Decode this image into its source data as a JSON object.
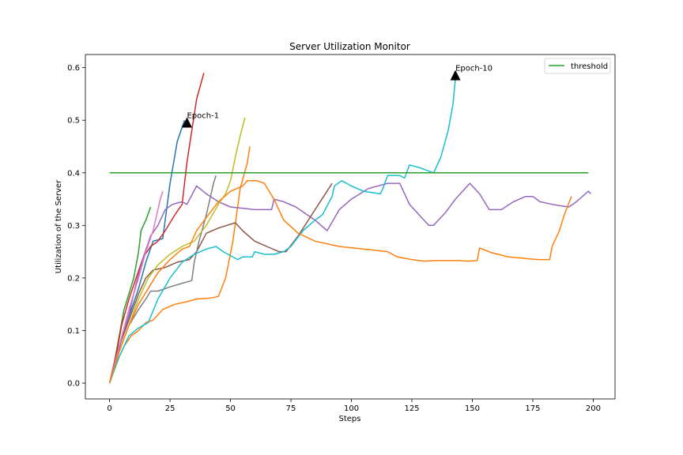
{
  "chart_data": {
    "type": "line",
    "title": "Server Utilization Monitor",
    "xlabel": "Steps",
    "ylabel": "Utilization of the Server",
    "xlim": [
      -10,
      209
    ],
    "ylim": [
      -0.03,
      0.625
    ],
    "xticks": [
      0,
      25,
      50,
      75,
      100,
      125,
      150,
      175,
      200
    ],
    "yticks": [
      0.0,
      0.1,
      0.2,
      0.3,
      0.4,
      0.5,
      0.6
    ],
    "ytick_labels": [
      "0.0",
      "0.1",
      "0.2",
      "0.3",
      "0.4",
      "0.5",
      "0.6"
    ],
    "grid": false,
    "legend_position": "upper right",
    "threshold": {
      "name": "threshold",
      "value": 0.4,
      "x_range": [
        0,
        198
      ],
      "color": "#2ca02c"
    },
    "series": [
      {
        "color": "#1f77b4",
        "points": [
          [
            0,
            0
          ],
          [
            3,
            0.05
          ],
          [
            6,
            0.1
          ],
          [
            9,
            0.14
          ],
          [
            12,
            0.18
          ],
          [
            15,
            0.23
          ],
          [
            18,
            0.27
          ],
          [
            22,
            0.275
          ],
          [
            25,
            0.38
          ],
          [
            28,
            0.46
          ],
          [
            31,
            0.5
          ]
        ]
      },
      {
        "color": "#ff7f0e",
        "points": [
          [
            0,
            0
          ],
          [
            3,
            0.04
          ],
          [
            6,
            0.07
          ],
          [
            9,
            0.09
          ],
          [
            12,
            0.1
          ],
          [
            15,
            0.115
          ],
          [
            18,
            0.12
          ],
          [
            22,
            0.14
          ],
          [
            27,
            0.15
          ],
          [
            32,
            0.155
          ],
          [
            36,
            0.16
          ],
          [
            42,
            0.162
          ],
          [
            45,
            0.165
          ],
          [
            48,
            0.2
          ],
          [
            51,
            0.27
          ],
          [
            54,
            0.37
          ],
          [
            57,
            0.42
          ],
          [
            58,
            0.45
          ]
        ]
      },
      {
        "color": "#2ca02c",
        "points": [
          [
            0,
            0
          ],
          [
            2,
            0.04
          ],
          [
            4,
            0.09
          ],
          [
            6,
            0.14
          ],
          [
            8,
            0.17
          ],
          [
            10,
            0.2
          ],
          [
            12,
            0.25
          ],
          [
            13,
            0.29
          ],
          [
            15,
            0.31
          ],
          [
            17,
            0.335
          ]
        ]
      },
      {
        "color": "#d62728",
        "points": [
          [
            0,
            0
          ],
          [
            3,
            0.06
          ],
          [
            5,
            0.11
          ],
          [
            8,
            0.16
          ],
          [
            11,
            0.2
          ],
          [
            14,
            0.24
          ],
          [
            17,
            0.26
          ],
          [
            20,
            0.27
          ],
          [
            23,
            0.29
          ],
          [
            27,
            0.32
          ],
          [
            30,
            0.34
          ],
          [
            32,
            0.42
          ],
          [
            34,
            0.48
          ],
          [
            36,
            0.54
          ],
          [
            39,
            0.59
          ]
        ]
      },
      {
        "color": "#9467bd",
        "points": [
          [
            0,
            0
          ],
          [
            4,
            0.07
          ],
          [
            8,
            0.13
          ],
          [
            11,
            0.19
          ],
          [
            14,
            0.24
          ],
          [
            17,
            0.28
          ],
          [
            20,
            0.3
          ],
          [
            23,
            0.33
          ],
          [
            26,
            0.34
          ],
          [
            30,
            0.345
          ],
          [
            32,
            0.34
          ],
          [
            36,
            0.375
          ],
          [
            40,
            0.36
          ],
          [
            45,
            0.345
          ],
          [
            50,
            0.335
          ],
          [
            60,
            0.33
          ],
          [
            67,
            0.33
          ],
          [
            68,
            0.35
          ],
          [
            72,
            0.345
          ],
          [
            77,
            0.335
          ],
          [
            85,
            0.31
          ],
          [
            90,
            0.29
          ],
          [
            95,
            0.33
          ],
          [
            100,
            0.35
          ],
          [
            107,
            0.37
          ],
          [
            115,
            0.38
          ],
          [
            120,
            0.38
          ],
          [
            124,
            0.34
          ],
          [
            128,
            0.32
          ],
          [
            132,
            0.3
          ],
          [
            134,
            0.3
          ],
          [
            139,
            0.325
          ],
          [
            143,
            0.35
          ],
          [
            147,
            0.37
          ],
          [
            149,
            0.38
          ],
          [
            153,
            0.36
          ],
          [
            157,
            0.33
          ],
          [
            162,
            0.33
          ],
          [
            167,
            0.345
          ],
          [
            172,
            0.355
          ],
          [
            175,
            0.355
          ],
          [
            178,
            0.345
          ],
          [
            183,
            0.34
          ],
          [
            187,
            0.337
          ],
          [
            190,
            0.335
          ],
          [
            193,
            0.345
          ],
          [
            198,
            0.365
          ],
          [
            199,
            0.36
          ]
        ]
      },
      {
        "color": "#8c564b",
        "points": [
          [
            0,
            0
          ],
          [
            4,
            0.07
          ],
          [
            8,
            0.12
          ],
          [
            12,
            0.17
          ],
          [
            15,
            0.2
          ],
          [
            18,
            0.215
          ],
          [
            23,
            0.22
          ],
          [
            28,
            0.23
          ],
          [
            33,
            0.235
          ],
          [
            36,
            0.25
          ],
          [
            40,
            0.285
          ],
          [
            45,
            0.295
          ],
          [
            52,
            0.305
          ],
          [
            55,
            0.29
          ],
          [
            60,
            0.27
          ],
          [
            65,
            0.26
          ],
          [
            70,
            0.25
          ],
          [
            73,
            0.25
          ],
          [
            78,
            0.28
          ],
          [
            85,
            0.33
          ],
          [
            92,
            0.38
          ]
        ]
      },
      {
        "color": "#e377c2",
        "points": [
          [
            0,
            0
          ],
          [
            4,
            0.07
          ],
          [
            8,
            0.14
          ],
          [
            12,
            0.2
          ],
          [
            15,
            0.25
          ],
          [
            18,
            0.29
          ],
          [
            21,
            0.35
          ],
          [
            22,
            0.365
          ]
        ]
      },
      {
        "color": "#7f7f7f",
        "points": [
          [
            0,
            0
          ],
          [
            4,
            0.06
          ],
          [
            8,
            0.11
          ],
          [
            12,
            0.14
          ],
          [
            15,
            0.16
          ],
          [
            17,
            0.175
          ],
          [
            20,
            0.175
          ],
          [
            25,
            0.183
          ],
          [
            30,
            0.19
          ],
          [
            34,
            0.195
          ],
          [
            35,
            0.23
          ],
          [
            37,
            0.27
          ],
          [
            40,
            0.32
          ],
          [
            43,
            0.38
          ],
          [
            44,
            0.395
          ]
        ]
      },
      {
        "color": "#bcbd22",
        "points": [
          [
            0,
            0
          ],
          [
            4,
            0.06
          ],
          [
            8,
            0.11
          ],
          [
            12,
            0.16
          ],
          [
            16,
            0.2
          ],
          [
            20,
            0.225
          ],
          [
            25,
            0.245
          ],
          [
            30,
            0.26
          ],
          [
            35,
            0.27
          ],
          [
            40,
            0.3
          ],
          [
            45,
            0.34
          ],
          [
            48,
            0.36
          ],
          [
            50,
            0.385
          ],
          [
            52,
            0.43
          ],
          [
            54,
            0.47
          ],
          [
            56,
            0.505
          ]
        ]
      },
      {
        "color": "#17becf",
        "points": [
          [
            0,
            0
          ],
          [
            4,
            0.05
          ],
          [
            8,
            0.09
          ],
          [
            12,
            0.105
          ],
          [
            16,
            0.115
          ],
          [
            20,
            0.16
          ],
          [
            25,
            0.2
          ],
          [
            30,
            0.23
          ],
          [
            35,
            0.245
          ],
          [
            40,
            0.255
          ],
          [
            44,
            0.26
          ],
          [
            47,
            0.25
          ],
          [
            53,
            0.235
          ],
          [
            55,
            0.24
          ],
          [
            59,
            0.24
          ],
          [
            60,
            0.25
          ],
          [
            64,
            0.245
          ],
          [
            68,
            0.245
          ],
          [
            72,
            0.25
          ],
          [
            75,
            0.26
          ],
          [
            80,
            0.29
          ],
          [
            85,
            0.31
          ],
          [
            88,
            0.32
          ],
          [
            92,
            0.355
          ],
          [
            93,
            0.375
          ],
          [
            96,
            0.385
          ],
          [
            100,
            0.375
          ],
          [
            105,
            0.365
          ],
          [
            112,
            0.36
          ],
          [
            113,
            0.37
          ],
          [
            115,
            0.395
          ],
          [
            120,
            0.395
          ],
          [
            122,
            0.39
          ],
          [
            124,
            0.415
          ],
          [
            128,
            0.41
          ],
          [
            131,
            0.405
          ],
          [
            134,
            0.4
          ],
          [
            137,
            0.43
          ],
          [
            140,
            0.48
          ],
          [
            142,
            0.53
          ],
          [
            143,
            0.58
          ]
        ]
      },
      {
        "color": "#ff7f0e",
        "points": [
          [
            0,
            0
          ],
          [
            4,
            0.06
          ],
          [
            8,
            0.11
          ],
          [
            12,
            0.15
          ],
          [
            16,
            0.18
          ],
          [
            20,
            0.21
          ],
          [
            25,
            0.235
          ],
          [
            30,
            0.255
          ],
          [
            33,
            0.26
          ],
          [
            36,
            0.29
          ],
          [
            40,
            0.315
          ],
          [
            45,
            0.345
          ],
          [
            50,
            0.365
          ],
          [
            55,
            0.375
          ],
          [
            57,
            0.385
          ],
          [
            61,
            0.385
          ],
          [
            64,
            0.38
          ],
          [
            68,
            0.35
          ],
          [
            72,
            0.31
          ],
          [
            78,
            0.285
          ],
          [
            85,
            0.27
          ],
          [
            95,
            0.26
          ],
          [
            105,
            0.255
          ],
          [
            115,
            0.25
          ],
          [
            119,
            0.24
          ],
          [
            125,
            0.235
          ],
          [
            130,
            0.232
          ],
          [
            135,
            0.233
          ],
          [
            140,
            0.233
          ],
          [
            145,
            0.233
          ],
          [
            148,
            0.232
          ],
          [
            152,
            0.233
          ],
          [
            153,
            0.257
          ],
          [
            158,
            0.248
          ],
          [
            165,
            0.24
          ],
          [
            172,
            0.237
          ],
          [
            177,
            0.235
          ],
          [
            182,
            0.235
          ],
          [
            183,
            0.26
          ],
          [
            186,
            0.29
          ],
          [
            188,
            0.32
          ],
          [
            191,
            0.355
          ]
        ]
      }
    ],
    "annotations": [
      {
        "text": "Epoch-1",
        "x": 32,
        "y": 0.495
      },
      {
        "text": "Epoch-10",
        "x": 143,
        "y": 0.585
      }
    ]
  }
}
